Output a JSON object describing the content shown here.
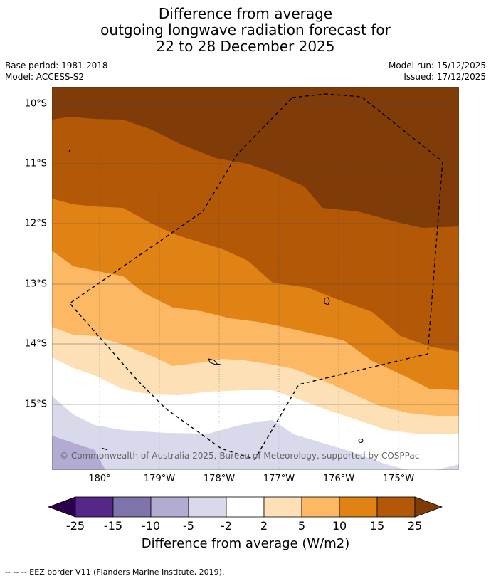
{
  "title": {
    "line1": "Difference from average",
    "line2": "outgoing longwave radiation forecast for",
    "line3": "22 to 28 December 2025"
  },
  "meta": {
    "base_period": "Base period: 1981-2018",
    "model": "Model: ACCESS-S2",
    "model_run": "Model run: 15/12/2025",
    "issued": "Issued: 17/12/2025"
  },
  "map": {
    "lat_labels": [
      "10°S",
      "11°S",
      "12°S",
      "13°S",
      "14°S",
      "15°S"
    ],
    "lon_labels": [
      "180°",
      "179°W",
      "178°W",
      "177°W",
      "176°W",
      "175°W"
    ],
    "copyright": "© Commonwealth of Australia 2025, Bureau of Meteorology, supported by COSPPac",
    "colors": {
      "over25": "#7f3b08",
      "c15_25": "#b35806",
      "c10_15": "#e08214",
      "c5_10": "#fdb863",
      "c2_5": "#fee0b6",
      "neutral": "#ffffff",
      "m5_m2": "#d8daeb",
      "m10_m5": "#b2abd2",
      "m15_m10": "#8073ac",
      "m25_m15": "#542788",
      "under_m25": "#2d004b"
    }
  },
  "colorbar": {
    "tick_labels": [
      "-25",
      "-15",
      "-10",
      "-5",
      "-2",
      "2",
      "5",
      "10",
      "15",
      "25"
    ],
    "title": "Difference from average (W/m2)"
  },
  "footnote": "--  --  -- EEZ border V11 (Flanders Marine Institute, 2019)."
}
